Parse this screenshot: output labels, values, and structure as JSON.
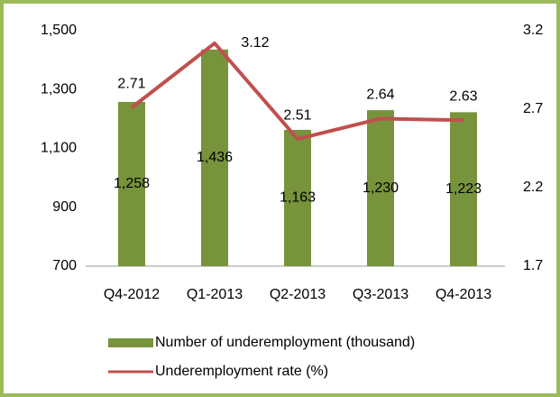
{
  "chart_data": {
    "type": "bar-line",
    "categories": [
      "Q4-2012",
      "Q1-2013",
      "Q2-2013",
      "Q3-2013",
      "Q4-2013"
    ],
    "series": [
      {
        "name": "Number of underemployment (thousand)",
        "type": "bar",
        "color": "#77933c",
        "values": [
          1258,
          1436,
          1163,
          1230,
          1223
        ],
        "value_labels": [
          "1,258",
          "1,436",
          "1,163",
          "1,230",
          "1,223"
        ]
      },
      {
        "name": "Underemployment rate (%)",
        "type": "line",
        "axis": "y2",
        "color": "#c0504d",
        "values": [
          2.71,
          3.12,
          2.51,
          2.64,
          2.63
        ]
      }
    ],
    "ylim": [
      700,
      1500
    ],
    "yticks": [
      700,
      900,
      {
        "value": 1100,
        "label": "1,100"
      },
      {
        "value": 1300,
        "label": "1,300"
      },
      {
        "value": 1500,
        "label": "1,500"
      }
    ],
    "y2lim": [
      1.7,
      3.2
    ],
    "y2ticks": [
      1.7,
      2.2,
      2.7,
      3.2
    ],
    "grid": false,
    "legend": "bottom"
  }
}
